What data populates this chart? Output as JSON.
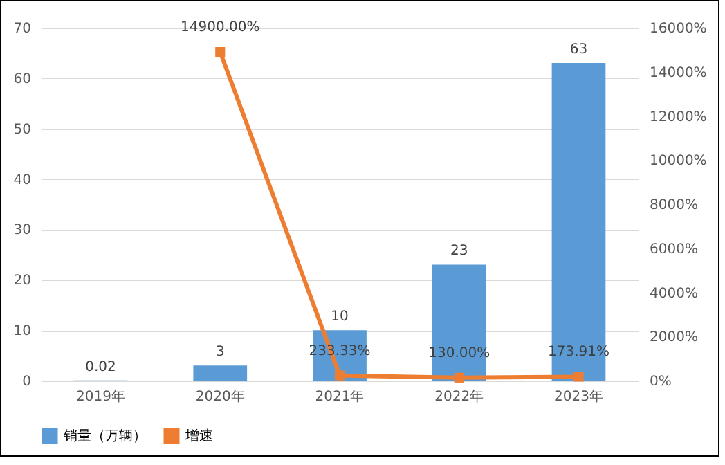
{
  "chart_data": {
    "type": "bar",
    "categories": [
      "2019年",
      "2020年",
      "2021年",
      "2022年",
      "2023年"
    ],
    "series": [
      {
        "name": "销量（万辆）",
        "color": "#5b9bd5",
        "values": [
          0.02,
          3,
          10,
          23,
          63
        ],
        "value_labels": [
          "0.02",
          "3",
          "10",
          "23",
          "63"
        ]
      },
      {
        "name": "增速",
        "type": "line",
        "axis": "y2",
        "color": "#ed7d31",
        "values": [
          null,
          14900,
          233.33,
          130,
          173.91
        ],
        "value_labels": [
          null,
          "14900.00%",
          "233.33%",
          "130.00%",
          "173.91%"
        ]
      }
    ],
    "ylim": [
      0,
      70
    ],
    "yticks": [
      0,
      10,
      20,
      30,
      40,
      50,
      60,
      70
    ],
    "y2lim": [
      0,
      16000
    ],
    "y2ticks": [
      {
        "value": 0,
        "label": "0%"
      },
      {
        "value": 2000,
        "label": "2000%"
      },
      {
        "value": 4000,
        "label": "4000%"
      },
      {
        "value": 6000,
        "label": "6000%"
      },
      {
        "value": 8000,
        "label": "8000%"
      },
      {
        "value": 10000,
        "label": "10000%"
      },
      {
        "value": 12000,
        "label": "12000%"
      },
      {
        "value": 14000,
        "label": "14000%"
      },
      {
        "value": 16000,
        "label": "16000%"
      }
    ],
    "grid": "y",
    "legend": "bottom",
    "marker": "square"
  }
}
